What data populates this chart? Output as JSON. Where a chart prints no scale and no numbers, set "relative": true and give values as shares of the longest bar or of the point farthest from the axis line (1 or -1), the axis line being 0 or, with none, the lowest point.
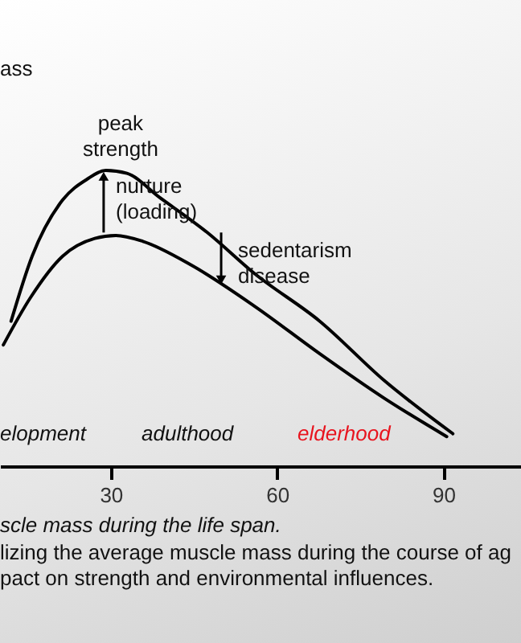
{
  "chart_data": {
    "type": "line",
    "relative": true,
    "xlim": [
      10,
      104
    ],
    "xticks": [
      30,
      60,
      90
    ],
    "tick_labels": "x",
    "grid": false,
    "legend": false,
    "marker": "none",
    "line_style": "solid",
    "series": [
      {
        "color": "#000000",
        "x": [
          12,
          15.8,
          21.3,
          25.7,
          29.1,
          32.9,
          38.7,
          47.4,
          56,
          67.7,
          79.3,
          91.7
        ],
        "values": [
          0.49,
          0.71,
          0.9,
          0.97,
          1,
          0.99,
          0.91,
          0.79,
          0.65,
          0.49,
          0.29,
          0.11
        ]
      },
      {
        "color": "#000000",
        "x": [
          10.6,
          15.5,
          21.3,
          27.1,
          30.9,
          35.8,
          44.5,
          56,
          67.7,
          79.3,
          90.6
        ],
        "values": [
          0.41,
          0.57,
          0.71,
          0.77,
          0.78,
          0.76,
          0.68,
          0.54,
          0.38,
          0.23,
          0.1
        ]
      }
    ],
    "annotations": [
      "ass",
      {
        "text": "peak strength",
        "x": 30,
        "y": 1
      },
      "nurture (loading)",
      "sedentarism disease",
      "elopment",
      "adulthood",
      "elderhood",
      "scle mass during the life span.",
      "lizing the average muscle mass during the course of ag",
      "pact on strength and environmental influences."
    ]
  }
}
